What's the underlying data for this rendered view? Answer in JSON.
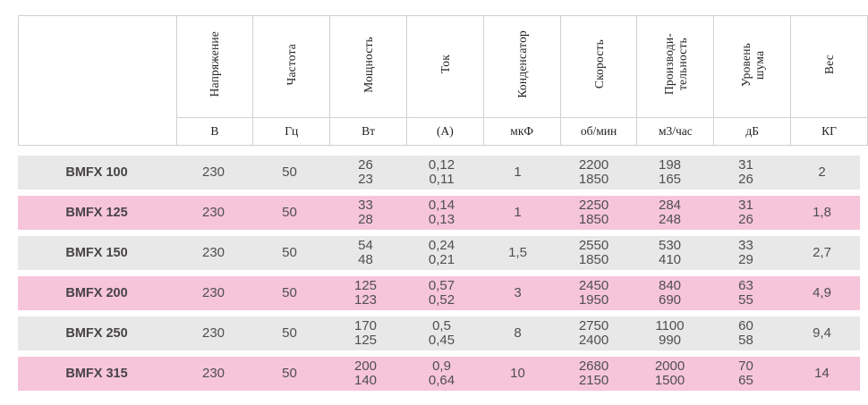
{
  "colors": {
    "row_gray": "#e8e8e8",
    "row_pink": "#f7c5da",
    "header_border": "#d0d0d0",
    "body_text": "#4f4f4f"
  },
  "table": {
    "columns": [
      {
        "label_lines": [],
        "unit": ""
      },
      {
        "label_lines": [
          "Напряжение"
        ],
        "unit": "В"
      },
      {
        "label_lines": [
          "Частота"
        ],
        "unit": "Гц"
      },
      {
        "label_lines": [
          "Мощность"
        ],
        "unit": "Вт"
      },
      {
        "label_lines": [
          "Ток"
        ],
        "unit": "(А)"
      },
      {
        "label_lines": [
          "Конденсатор"
        ],
        "unit": "мкФ"
      },
      {
        "label_lines": [
          "Скорость"
        ],
        "unit": "об/мин"
      },
      {
        "label_lines": [
          "Производи-",
          "тельность"
        ],
        "unit": "м3/час"
      },
      {
        "label_lines": [
          "Уровень",
          "шума"
        ],
        "unit": "дБ"
      },
      {
        "label_lines": [
          "Вес"
        ],
        "unit": "КГ"
      }
    ],
    "rows": [
      {
        "model": "BMFX 100",
        "shade": "gray",
        "values": [
          [
            "230"
          ],
          [
            "50"
          ],
          [
            "26",
            "23"
          ],
          [
            "0,12",
            "0,11"
          ],
          [
            "1"
          ],
          [
            "2200",
            "1850"
          ],
          [
            "198",
            "165"
          ],
          [
            "31",
            "26"
          ],
          [
            "2"
          ]
        ]
      },
      {
        "model": "BMFX 125",
        "shade": "pink",
        "values": [
          [
            "230"
          ],
          [
            "50"
          ],
          [
            "33",
            "28"
          ],
          [
            "0,14",
            "0,13"
          ],
          [
            "1"
          ],
          [
            "2250",
            "1850"
          ],
          [
            "284",
            "248"
          ],
          [
            "31",
            "26"
          ],
          [
            "1,8"
          ]
        ]
      },
      {
        "model": "BMFX 150",
        "shade": "gray",
        "values": [
          [
            "230"
          ],
          [
            "50"
          ],
          [
            "54",
            "48"
          ],
          [
            "0,24",
            "0,21"
          ],
          [
            "1,5"
          ],
          [
            "2550",
            "1850"
          ],
          [
            "530",
            "410"
          ],
          [
            "33",
            "29"
          ],
          [
            "2,7"
          ]
        ]
      },
      {
        "model": "BMFX 200",
        "shade": "pink",
        "values": [
          [
            "230"
          ],
          [
            "50"
          ],
          [
            "125",
            "123"
          ],
          [
            "0,57",
            "0,52"
          ],
          [
            "3"
          ],
          [
            "2450",
            "1950"
          ],
          [
            "840",
            "690"
          ],
          [
            "63",
            "55"
          ],
          [
            "4,9"
          ]
        ]
      },
      {
        "model": "BMFX 250",
        "shade": "gray",
        "values": [
          [
            "230"
          ],
          [
            "50"
          ],
          [
            "170",
            "125"
          ],
          [
            "0,5",
            "0,45"
          ],
          [
            "8"
          ],
          [
            "2750",
            "2400"
          ],
          [
            "1100",
            "990"
          ],
          [
            "60",
            "58"
          ],
          [
            "9,4"
          ]
        ]
      },
      {
        "model": "BMFX 315",
        "shade": "pink",
        "values": [
          [
            "230"
          ],
          [
            "50"
          ],
          [
            "200",
            "140"
          ],
          [
            "0,9",
            "0,64"
          ],
          [
            "10"
          ],
          [
            "2680",
            "2150"
          ],
          [
            "2000",
            "1500"
          ],
          [
            "70",
            "65"
          ],
          [
            "14"
          ]
        ]
      }
    ]
  }
}
